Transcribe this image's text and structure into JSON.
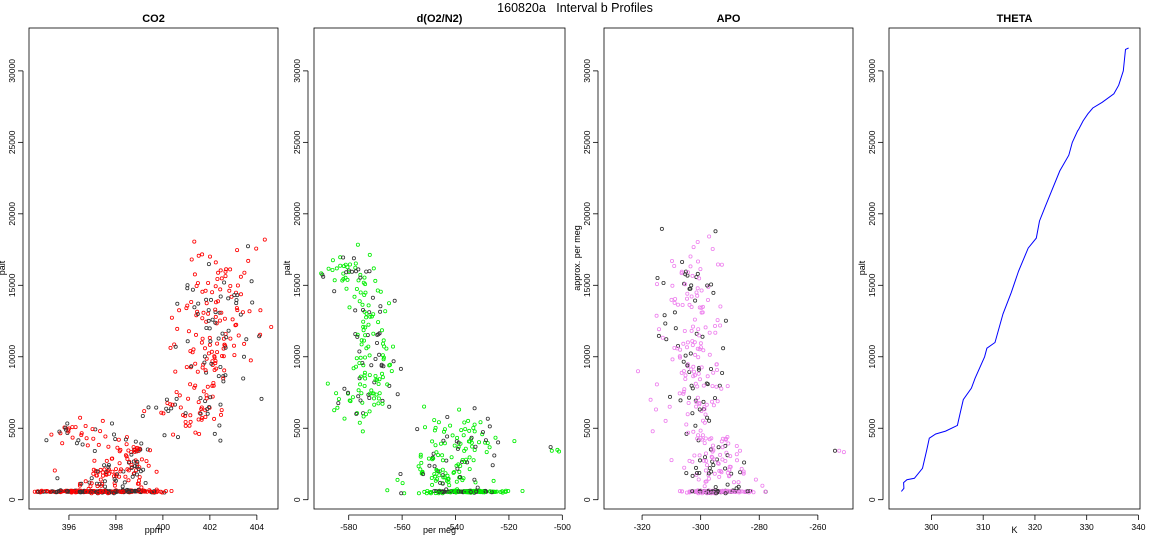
{
  "figure": {
    "title": "160820a   Interval b Profiles"
  },
  "chart_data": [
    {
      "type": "scatter",
      "title": "CO2",
      "xlabel": "ppm",
      "ylabel": "palt",
      "xlim": [
        394.3,
        404.9
      ],
      "ylim": [
        -650,
        33000
      ],
      "xticks": [
        "396",
        "398",
        "400",
        "402",
        "404"
      ],
      "yticks": [
        "0",
        "5000",
        "10000",
        "15000",
        "20000",
        "25000",
        "30000"
      ],
      "color": "#ff0000",
      "marker": "open-circle",
      "clusters": [
        {
          "x": 397.2,
          "y": 570,
          "sx": 1.4,
          "sy": 30,
          "n": 260
        },
        {
          "x": 398.6,
          "y": 600,
          "sx": 0.8,
          "sy": 60,
          "n": 40
        },
        {
          "x": 397.5,
          "y": 1200,
          "sx": 0.7,
          "sy": 600,
          "n": 50
        },
        {
          "x": 398.3,
          "y": 2200,
          "sx": 0.6,
          "sy": 700,
          "n": 45
        },
        {
          "x": 396.3,
          "y": 4800,
          "sx": 0.6,
          "sy": 350,
          "n": 22
        },
        {
          "x": 397.8,
          "y": 3900,
          "sx": 0.9,
          "sy": 600,
          "n": 25
        },
        {
          "x": 398.9,
          "y": 3200,
          "sx": 0.4,
          "sy": 500,
          "n": 25
        },
        {
          "x": 400.4,
          "y": 6000,
          "sx": 0.6,
          "sy": 400,
          "n": 18
        },
        {
          "x": 401.2,
          "y": 8500,
          "sx": 0.8,
          "sy": 2500,
          "n": 40
        },
        {
          "x": 402.0,
          "y": 10000,
          "sx": 0.5,
          "sy": 3000,
          "n": 95
        },
        {
          "x": 402.5,
          "y": 14500,
          "sx": 0.8,
          "sy": 1600,
          "n": 55
        },
        {
          "x": 403.3,
          "y": 12000,
          "sx": 0.8,
          "sy": 2600,
          "n": 25
        }
      ]
    },
    {
      "type": "scatter",
      "title": "d(O2/N2)",
      "xlabel": "per meg",
      "ylabel": "palt",
      "xlim": [
        -593,
        -499
      ],
      "ylim": [
        -650,
        33000
      ],
      "xticks": [
        "-580",
        "-560",
        "-540",
        "-520",
        "-500"
      ],
      "yticks": [
        "0",
        "5000",
        "10000",
        "15000",
        "20000",
        "25000",
        "30000"
      ],
      "color": "#00ee00",
      "marker": "open-circle",
      "clusters": [
        {
          "x": -536,
          "y": 570,
          "sx": 6,
          "sy": 30,
          "n": 160
        },
        {
          "x": -545,
          "y": 1600,
          "sx": 7,
          "sy": 900,
          "n": 75
        },
        {
          "x": -542,
          "y": 3800,
          "sx": 8,
          "sy": 1000,
          "n": 55
        },
        {
          "x": -530,
          "y": 4200,
          "sx": 5,
          "sy": 900,
          "n": 22
        },
        {
          "x": -580,
          "y": 15800,
          "sx": 4,
          "sy": 700,
          "n": 35
        },
        {
          "x": -573,
          "y": 13000,
          "sx": 3,
          "sy": 1600,
          "n": 45
        },
        {
          "x": -571,
          "y": 10000,
          "sx": 4,
          "sy": 1900,
          "n": 55
        },
        {
          "x": -575,
          "y": 7200,
          "sx": 6,
          "sy": 1200,
          "n": 45
        },
        {
          "x": -504,
          "y": 3300,
          "sx": 2,
          "sy": 200,
          "n": 4
        }
      ]
    },
    {
      "type": "scatter",
      "title": "APO",
      "xlabel": "",
      "ylabel": "approx. per meg",
      "xlim": [
        -333,
        -248
      ],
      "ylim": [
        -650,
        33000
      ],
      "xticks": [
        "-320",
        "-300",
        "-280",
        "-260"
      ],
      "yticks": [
        "0",
        "5000",
        "10000",
        "15000",
        "20000",
        "25000",
        "30000"
      ],
      "color": "#ee82ee",
      "marker": "open-circle",
      "clusters": [
        {
          "x": -295,
          "y": 570,
          "sx": 6,
          "sy": 30,
          "n": 180
        },
        {
          "x": -294,
          "y": 1600,
          "sx": 6,
          "sy": 900,
          "n": 55
        },
        {
          "x": -297,
          "y": 3600,
          "sx": 6,
          "sy": 1000,
          "n": 55
        },
        {
          "x": -300,
          "y": 7000,
          "sx": 5,
          "sy": 1600,
          "n": 55
        },
        {
          "x": -301,
          "y": 11000,
          "sx": 5,
          "sy": 2200,
          "n": 75
        },
        {
          "x": -305,
          "y": 15000,
          "sx": 5,
          "sy": 1300,
          "n": 45
        },
        {
          "x": -313,
          "y": 9000,
          "sx": 3,
          "sy": 4000,
          "n": 14
        },
        {
          "x": -252,
          "y": 3400,
          "sx": 1,
          "sy": 150,
          "n": 3
        }
      ]
    },
    {
      "type": "line",
      "title": "THETA",
      "xlabel": "K",
      "ylabel": "palt",
      "xlim": [
        291.8,
        340.3
      ],
      "ylim": [
        -650,
        33000
      ],
      "xticks": [
        "300",
        "310",
        "320",
        "330",
        "340"
      ],
      "yticks": [
        "0",
        "5000",
        "10000",
        "15000",
        "20000",
        "25000",
        "30000"
      ],
      "color": "#0000ff",
      "x": [
        294.2,
        294.5,
        294.7,
        295.5,
        296.5,
        298.0,
        299.0,
        299.6,
        301.0,
        303.0,
        305.0,
        305.8,
        306.3,
        307.5,
        308.5,
        310.5,
        311.0,
        312.0,
        314.0,
        315.5,
        317.0,
        318.5,
        320.0,
        321.0,
        322.0,
        323.0,
        325.0,
        326.5,
        327.5,
        328.2,
        328.7,
        329.4,
        330.0,
        331.0,
        333.0,
        335.0,
        336.0,
        336.8,
        337.5,
        338.1
      ],
      "y": [
        580,
        800,
        1200,
        1400,
        1500,
        2200,
        3500,
        4300,
        4600,
        4800,
        5200,
        6000,
        7000,
        7800,
        8500,
        10000,
        10600,
        11000,
        13000,
        14500,
        16000,
        17600,
        18300,
        19500,
        20500,
        21500,
        23000,
        24100,
        25000,
        25800,
        25900,
        26500,
        27000,
        27400,
        27800,
        28400,
        29000,
        30000,
        31500,
        31600
      ]
    }
  ]
}
